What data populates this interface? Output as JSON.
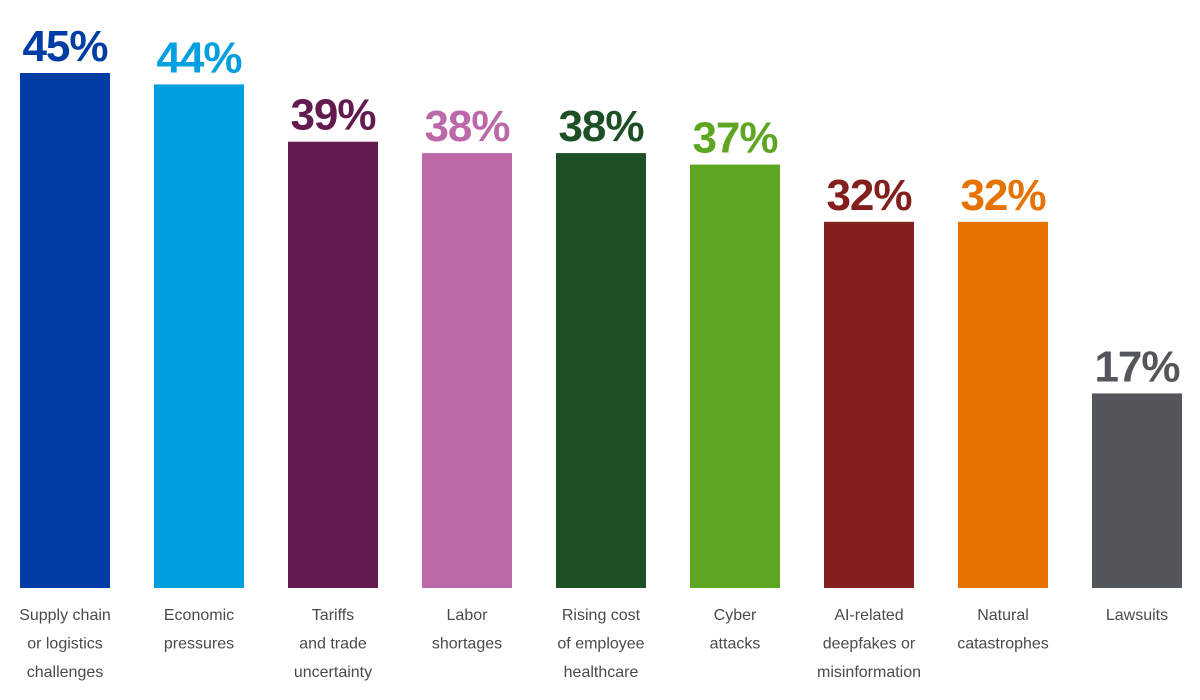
{
  "chart_data": {
    "type": "bar",
    "categories": [
      [
        "Supply chain",
        "or logistics",
        "challenges"
      ],
      [
        "Economic",
        "pressures"
      ],
      [
        "Tariffs",
        "and trade",
        "uncertainty"
      ],
      [
        "Labor",
        "shortages"
      ],
      [
        "Rising cost",
        "of employee",
        "healthcare"
      ],
      [
        "Cyber",
        "attacks"
      ],
      [
        "AI-related",
        "deepfakes or",
        "misinformation"
      ],
      [
        "Natural",
        "catastrophes"
      ],
      [
        "Lawsuits"
      ]
    ],
    "values": [
      45,
      44,
      39,
      38,
      38,
      37,
      32,
      32,
      17
    ],
    "value_labels": [
      "45%",
      "44%",
      "39%",
      "38%",
      "38%",
      "37%",
      "32%",
      "32%",
      "17%"
    ],
    "colors": [
      "#003da5",
      "#009fdf",
      "#621a4f",
      "#bc69aa",
      "#1e5025",
      "#5ea622",
      "#83201d",
      "#e57201",
      "#53565a"
    ],
    "ylim": [
      0,
      45
    ],
    "grid": false,
    "legend": "none"
  }
}
